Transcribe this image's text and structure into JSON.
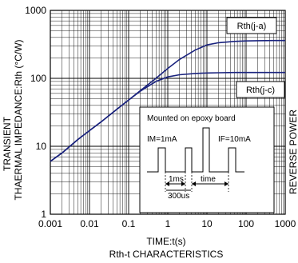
{
  "chart_data": {
    "type": "line",
    "x_scale": "log",
    "y_scale": "log",
    "xlim": [
      0.001,
      1000
    ],
    "ylim": [
      1,
      1000
    ],
    "x_ticks": [
      "0.001",
      "0.01",
      "0.1",
      "1",
      "10",
      "100",
      "1000"
    ],
    "y_ticks": [
      "1000",
      "100",
      "10",
      "1"
    ],
    "xlabel": "TIME:t(s)",
    "ylabel_line1": "TRANSIENT",
    "ylabel_line2": "THAERMAL IMPEDANCE:Rth (°C/W)",
    "right_label": "REVERSE POWER",
    "caption": "Rth-t CHARACTERISTICS",
    "grid": true,
    "series": [
      {
        "name": "Rth(j-a)",
        "x": [
          0.001,
          0.002,
          0.005,
          0.01,
          0.02,
          0.05,
          0.1,
          0.2,
          0.5,
          1,
          2,
          5,
          10,
          20,
          50,
          100,
          200,
          500,
          1000
        ],
        "y": [
          6,
          8,
          12.5,
          17,
          23,
          35,
          48,
          66,
          100,
          140,
          190,
          260,
          310,
          335,
          350,
          355,
          358,
          360,
          360
        ],
        "color": "#1a237e"
      },
      {
        "name": "Rth(j-c)",
        "x": [
          0.001,
          0.002,
          0.005,
          0.01,
          0.02,
          0.05,
          0.1,
          0.2,
          0.5,
          1,
          2,
          5,
          10,
          20,
          50,
          100,
          200,
          500,
          1000
        ],
        "y": [
          6,
          8,
          12.5,
          17,
          23,
          35,
          48,
          65,
          90,
          105,
          113,
          118,
          120,
          121,
          122,
          122,
          122,
          122,
          122
        ],
        "color": "#1a237e"
      }
    ],
    "inset": {
      "title": "Mounted on epoxy board",
      "label_im": "IM=1mA",
      "label_if": "IF=10mA",
      "label_1ms": "1ms",
      "label_time": "time",
      "label_300us": "300us"
    }
  }
}
